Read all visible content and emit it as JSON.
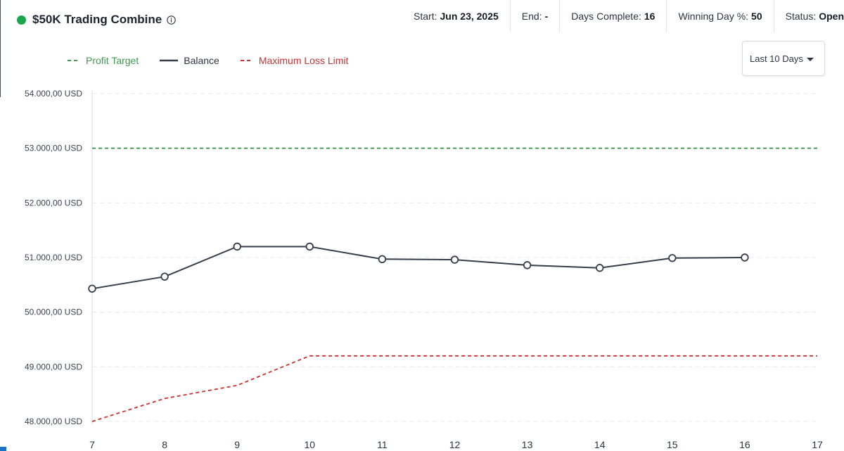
{
  "header": {
    "title": "$50K Trading Combine",
    "status_color": "#1aa64a",
    "stats": [
      {
        "label": "Start:",
        "value": "Jun 23, 2025"
      },
      {
        "label": "End:",
        "value": "-"
      },
      {
        "label": "Days Complete:",
        "value": "16"
      },
      {
        "label": "Winning Day %:",
        "value": "50"
      },
      {
        "label": "Status:",
        "value": "Open"
      }
    ]
  },
  "legend": {
    "profit_target": "Profit Target",
    "balance": "Balance",
    "max_loss": "Maximum Loss Limit"
  },
  "range_select": {
    "value": "Last 10 Days"
  },
  "colors": {
    "profit_target": "#3e9b4f",
    "balance": "#353e4a",
    "max_loss": "#cc3030",
    "grid": "#e6e8eb"
  },
  "chart_data": {
    "type": "line",
    "x": [
      7,
      8,
      9,
      10,
      11,
      12,
      13,
      14,
      15,
      16,
      17
    ],
    "xlim": [
      7,
      17
    ],
    "ylim": [
      48000,
      54000
    ],
    "yticks": [
      48000,
      49000,
      50000,
      51000,
      52000,
      53000,
      54000
    ],
    "ytick_labels": [
      "48.000,00 USD",
      "49.000,00 USD",
      "50.000,00 USD",
      "51.000,00 USD",
      "52.000,00 USD",
      "53.000,00 USD",
      "54.000,00 USD"
    ],
    "xtick_labels": [
      "7",
      "8",
      "9",
      "10",
      "11",
      "12",
      "13",
      "14",
      "15",
      "16",
      "17"
    ],
    "grid": true,
    "legend_position": "top-left",
    "series": [
      {
        "name": "Profit Target",
        "style": "dashed",
        "x": [
          7,
          17
        ],
        "values": [
          53000,
          53000
        ]
      },
      {
        "name": "Balance",
        "style": "solid",
        "markers": true,
        "x": [
          7,
          8,
          9,
          10,
          11,
          12,
          13,
          14,
          15,
          16
        ],
        "values": [
          50430,
          50650,
          51200,
          51200,
          50970,
          50960,
          50860,
          50810,
          50990,
          51000
        ]
      },
      {
        "name": "Maximum Loss Limit",
        "style": "dashed",
        "x": [
          7,
          8,
          9,
          10,
          11,
          12,
          13,
          14,
          15,
          16,
          17
        ],
        "values": [
          48000,
          48420,
          48660,
          49200,
          49200,
          49200,
          49200,
          49200,
          49200,
          49200,
          49200
        ]
      }
    ]
  }
}
